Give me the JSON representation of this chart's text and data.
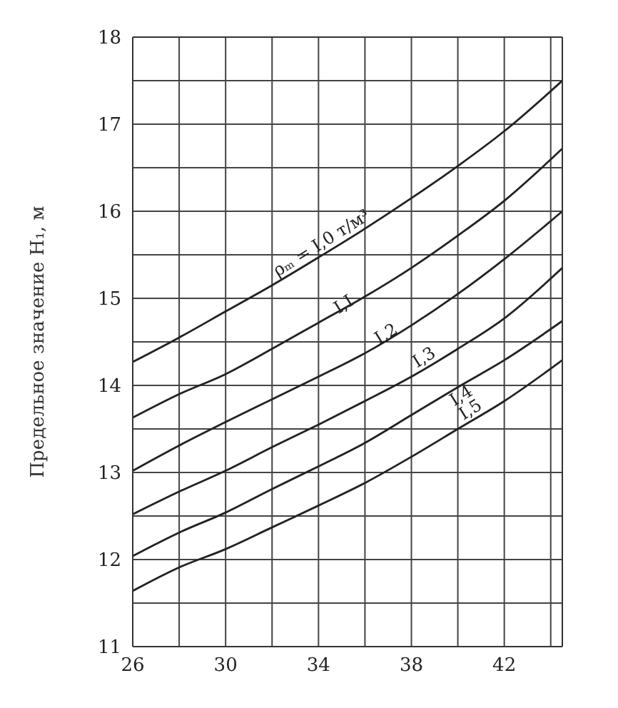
{
  "chart_data": {
    "type": "line",
    "ylabel": "Предельное значение H₁, м",
    "x": [
      26,
      28,
      30,
      32,
      34,
      36,
      38,
      40,
      42,
      44.5
    ],
    "series": [
      {
        "name": "ρₘ = I,0 т/м³",
        "color": "#222222",
        "values": [
          14.27,
          14.55,
          14.85,
          15.15,
          15.47,
          15.8,
          16.15,
          16.52,
          16.92,
          17.5
        ]
      },
      {
        "name": "I,I",
        "color": "#222222",
        "values": [
          13.63,
          13.9,
          14.13,
          14.42,
          14.72,
          15.02,
          15.35,
          15.72,
          16.12,
          16.72
        ]
      },
      {
        "name": "I,2",
        "color": "#222222",
        "values": [
          13.02,
          13.31,
          13.58,
          13.84,
          14.1,
          14.37,
          14.69,
          15.05,
          15.45,
          16.0
        ]
      },
      {
        "name": "I,3",
        "color": "#222222",
        "values": [
          12.52,
          12.78,
          13.02,
          13.29,
          13.55,
          13.82,
          14.1,
          14.42,
          14.77,
          15.35
        ]
      },
      {
        "name": "I,4",
        "color": "#222222",
        "values": [
          12.04,
          12.31,
          12.54,
          12.81,
          13.07,
          13.34,
          13.66,
          13.98,
          14.29,
          14.74
        ]
      },
      {
        "name": "I,5",
        "color": "#222222",
        "values": [
          11.64,
          11.91,
          12.12,
          12.37,
          12.62,
          12.88,
          13.18,
          13.5,
          13.82,
          14.29
        ]
      }
    ],
    "xlim": [
      26,
      44.5
    ],
    "xticks": [
      26,
      {
        "value": 28,
        "label": null
      },
      30,
      {
        "value": 32,
        "label": null
      },
      34,
      {
        "value": 36,
        "label": null
      },
      38,
      {
        "value": 40,
        "label": null
      },
      42,
      {
        "value": 44,
        "label": null
      }
    ],
    "ylim": [
      11,
      18
    ],
    "yticks": [
      11,
      {
        "value": 11.5,
        "label": null
      },
      12,
      {
        "value": 12.5,
        "label": null
      },
      13,
      {
        "value": 13.5,
        "label": null
      },
      14,
      {
        "value": 14.5,
        "label": null
      },
      15,
      {
        "value": 15.5,
        "label": null
      },
      16,
      {
        "value": 16.5,
        "label": null
      },
      17,
      {
        "value": 17.5,
        "label": null
      },
      18
    ],
    "grid": true,
    "legend": false,
    "marker": "none",
    "line_style": "solid"
  }
}
